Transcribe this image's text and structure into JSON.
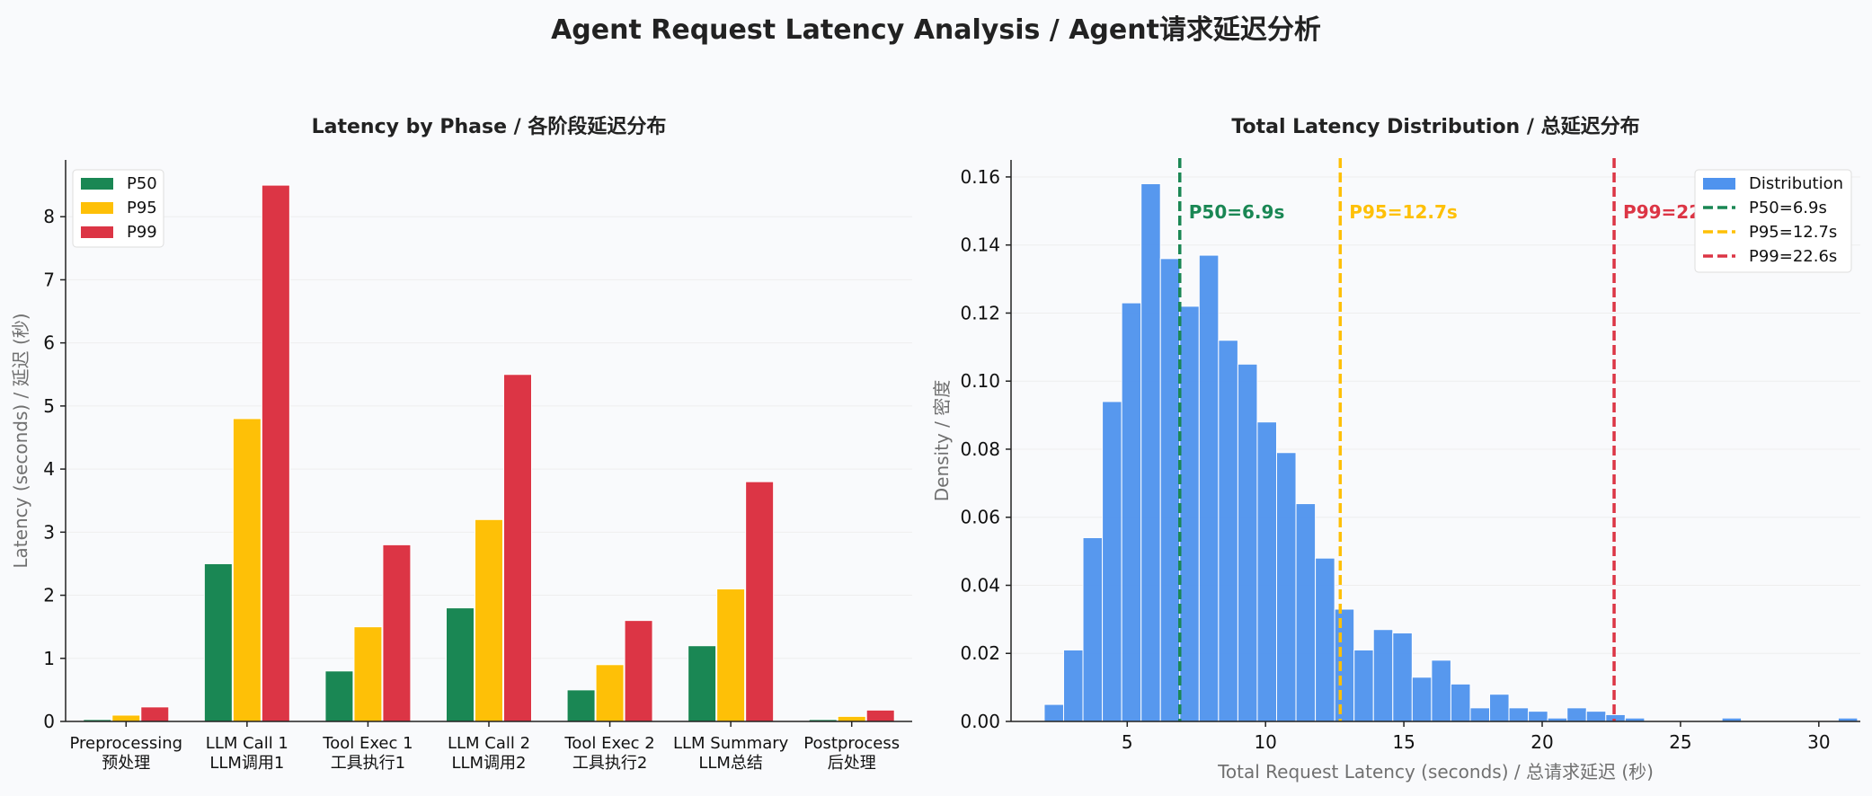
{
  "suptitle": "Agent Request Latency Analysis / Agent请求延迟分析",
  "colors": {
    "p50": "#1a8754",
    "p95": "#fec007",
    "p99": "#dc3545",
    "hist": "#4f93ee",
    "axis": "#222222",
    "grid": "#eeeeee"
  },
  "chart_data": [
    {
      "type": "bar",
      "title": "Latency by Phase / 各阶段延迟分布",
      "xlabel": "",
      "ylabel": "Latency (seconds) / 延迟 (秒)",
      "categories": [
        [
          "Preprocessing",
          "预处理"
        ],
        [
          "LLM Call 1",
          "LLM调用1"
        ],
        [
          "Tool Exec 1",
          "工具执行1"
        ],
        [
          "LLM Call 2",
          "LLM调用2"
        ],
        [
          "Tool Exec 2",
          "工具执行2"
        ],
        [
          "LLM Summary",
          "LLM总结"
        ],
        [
          "Postprocess",
          "后处理"
        ]
      ],
      "series": [
        {
          "name": "P50",
          "color": "#1a8754",
          "values": [
            0.03,
            2.5,
            0.8,
            1.8,
            0.5,
            1.2,
            0.03
          ]
        },
        {
          "name": "P95",
          "color": "#fec007",
          "values": [
            0.1,
            4.8,
            1.5,
            3.2,
            0.9,
            2.1,
            0.08
          ]
        },
        {
          "name": "P99",
          "color": "#dc3545",
          "values": [
            0.23,
            8.5,
            2.8,
            5.5,
            1.6,
            3.8,
            0.18
          ]
        }
      ],
      "ylim": [
        0,
        8.9
      ],
      "yticks": [
        0,
        1,
        2,
        3,
        4,
        5,
        6,
        7,
        8
      ],
      "grid": true,
      "legend": "upper-left"
    },
    {
      "type": "histogram",
      "title": "Total Latency Distribution / 总延迟分布",
      "xlabel": "Total Request Latency (seconds) / 总请求延迟 (秒)",
      "ylabel": "Density / 密度",
      "bin_start": 2.0,
      "bin_width": 0.7,
      "density": [
        0.005,
        0.021,
        0.054,
        0.094,
        0.123,
        0.158,
        0.136,
        0.122,
        0.137,
        0.112,
        0.105,
        0.088,
        0.079,
        0.064,
        0.048,
        0.033,
        0.021,
        0.027,
        0.026,
        0.013,
        0.018,
        0.011,
        0.004,
        0.008,
        0.004,
        0.003,
        0.001,
        0.004,
        0.003,
        0.002,
        0.001,
        0.0,
        0.0,
        0.0,
        0.0,
        0.001,
        0.0,
        0.0,
        0.0,
        0.0,
        0.0,
        0.001
      ],
      "xlim": [
        0.8,
        31.5
      ],
      "ylim": [
        0,
        0.165
      ],
      "xticks": [
        5,
        10,
        15,
        20,
        25,
        30
      ],
      "yticks": [
        0.0,
        0.02,
        0.04,
        0.06,
        0.08,
        0.1,
        0.12,
        0.14,
        0.16
      ],
      "ytick_labels": [
        "0.00",
        "0.02",
        "0.04",
        "0.06",
        "0.08",
        "0.10",
        "0.12",
        "0.14",
        "0.16"
      ],
      "vlines": [
        {
          "label": "P50=6.9s",
          "x": 6.9,
          "color": "#1a8754"
        },
        {
          "label": "P95=12.7s",
          "x": 12.7,
          "color": "#fec007"
        },
        {
          "label": "P99=22.6s",
          "x": 22.6,
          "color": "#dc3545"
        }
      ],
      "legend_entries": [
        "Distribution",
        "P50=6.9s",
        "P95=12.7s",
        "P99=22.6s"
      ],
      "grid": true,
      "legend": "upper-right"
    }
  ]
}
